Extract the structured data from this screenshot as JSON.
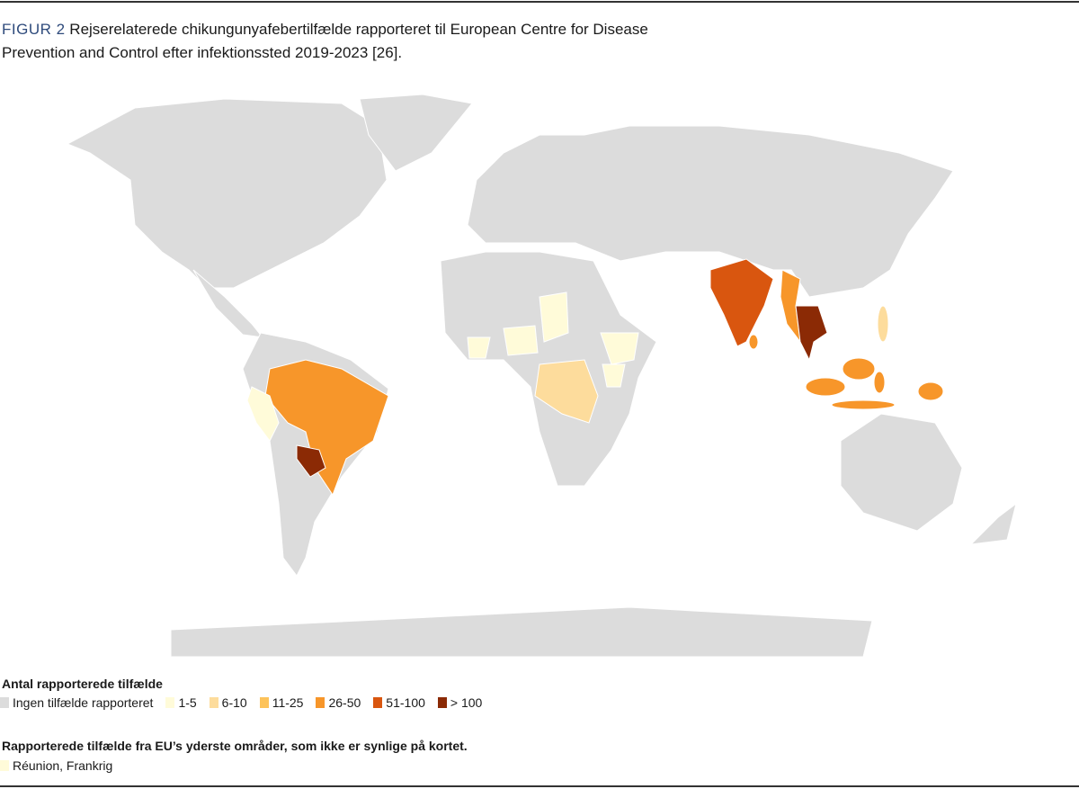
{
  "header": {
    "label": "FIGUR 2",
    "caption": "Rejserelaterede chikungunyafebertilfælde rapporteret til European Centre for Disease Prevention and Control efter infektionssted 2019-2023 [26]."
  },
  "legend": {
    "title": "Antal rapporterede tilfælde",
    "items": [
      {
        "label": "Ingen tilfælde rapporteret",
        "color": "#dcdcdc"
      },
      {
        "label": "1-5",
        "color": "#fffbd9"
      },
      {
        "label": "6-10",
        "color": "#fddc9c"
      },
      {
        "label": "11-25",
        "color": "#fdc35a"
      },
      {
        "label": "26-50",
        "color": "#f7962a"
      },
      {
        "label": "51-100",
        "color": "#d9560f"
      },
      {
        "label": "> 100",
        "color": "#8b2a05"
      }
    ]
  },
  "outermost": {
    "title": "Rapporterede tilfælde fra EU’s yderste områder, som ikke er synlige på kortet.",
    "items": [
      {
        "label": "Réunion, Frankrig",
        "color": "#fffbd9"
      }
    ]
  }
}
